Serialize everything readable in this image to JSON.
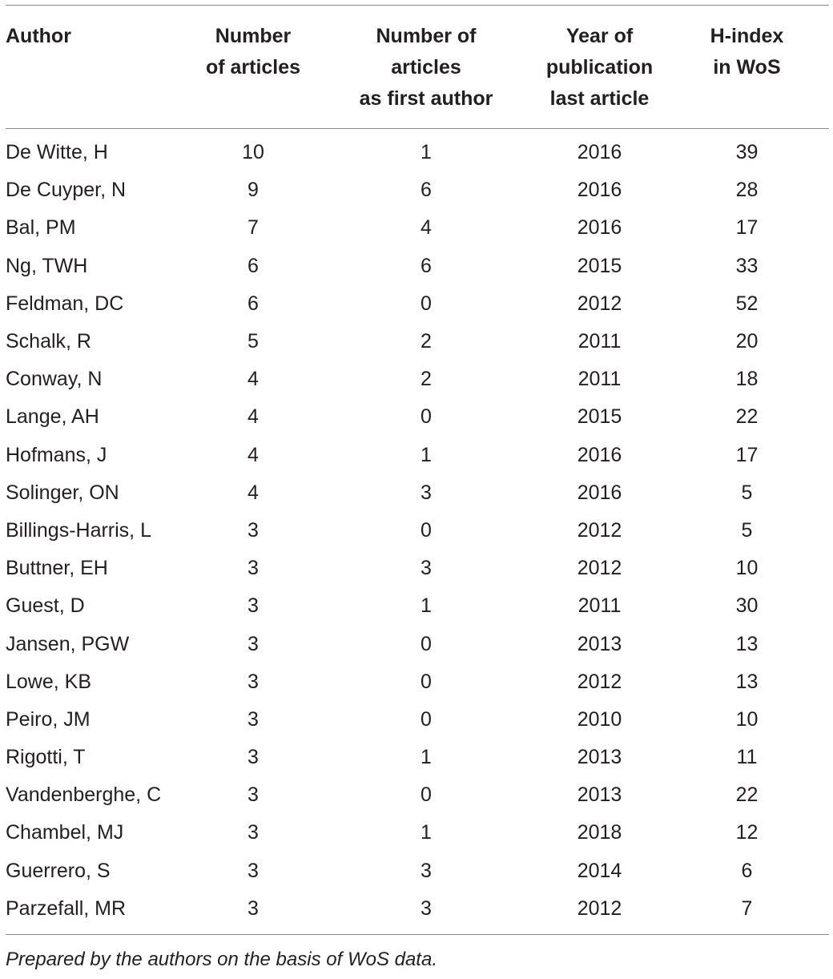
{
  "table": {
    "headers": [
      {
        "lines": [
          "Author"
        ]
      },
      {
        "lines": [
          "Number",
          "of articles"
        ]
      },
      {
        "lines": [
          "Number of",
          "articles",
          "as first author"
        ]
      },
      {
        "lines": [
          "Year of",
          "publication",
          "last article"
        ]
      },
      {
        "lines": [
          "H-index",
          "in WoS"
        ]
      }
    ],
    "rows": [
      [
        "De Witte, H",
        "10",
        "1",
        "2016",
        "39"
      ],
      [
        "De Cuyper, N",
        "9",
        "6",
        "2016",
        "28"
      ],
      [
        "Bal, PM",
        "7",
        "4",
        "2016",
        "17"
      ],
      [
        "Ng, TWH",
        "6",
        "6",
        "2015",
        "33"
      ],
      [
        "Feldman, DC",
        "6",
        "0",
        "2012",
        "52"
      ],
      [
        "Schalk, R",
        "5",
        "2",
        "2011",
        "20"
      ],
      [
        "Conway, N",
        "4",
        "2",
        "2011",
        "18"
      ],
      [
        "Lange, AH",
        "4",
        "0",
        "2015",
        "22"
      ],
      [
        "Hofmans, J",
        "4",
        "1",
        "2016",
        "17"
      ],
      [
        "Solinger, ON",
        "4",
        "3",
        "2016",
        "5"
      ],
      [
        "Billings-Harris, L",
        "3",
        "0",
        "2012",
        "5"
      ],
      [
        "Buttner, EH",
        "3",
        "3",
        "2012",
        "10"
      ],
      [
        "Guest, D",
        "3",
        "1",
        "2011",
        "30"
      ],
      [
        "Jansen, PGW",
        "3",
        "0",
        "2013",
        "13"
      ],
      [
        "Lowe, KB",
        "3",
        "0",
        "2012",
        "13"
      ],
      [
        "Peiro, JM",
        "3",
        "0",
        "2010",
        "10"
      ],
      [
        "Rigotti, T",
        "3",
        "1",
        "2013",
        "11"
      ],
      [
        "Vandenberghe, C",
        "3",
        "0",
        "2013",
        "22"
      ],
      [
        "Chambel, MJ",
        "3",
        "1",
        "2018",
        "12"
      ],
      [
        "Guerrero, S",
        "3",
        "3",
        "2014",
        "6"
      ],
      [
        "Parzefall, MR",
        "3",
        "3",
        "2012",
        "7"
      ]
    ]
  },
  "footnote": "Prepared by the authors on the basis of WoS data."
}
